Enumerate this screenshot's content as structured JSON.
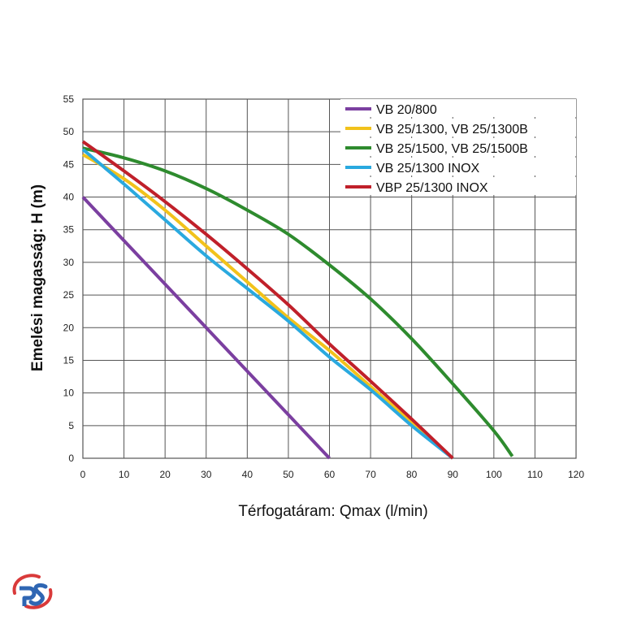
{
  "chart_data": {
    "type": "line",
    "xlabel": "Térfogatáram: Qmax (l/min)",
    "ylabel": "Emelési magasság: H (m)",
    "xlim": [
      0,
      120
    ],
    "ylim": [
      0,
      55
    ],
    "xticks": [
      "0",
      "10",
      "20",
      "30",
      "40",
      "50",
      "60",
      "70",
      "80",
      "90",
      "100",
      "110",
      "120"
    ],
    "yticks": [
      "0",
      "5",
      "10",
      "15",
      "20",
      "25",
      "30",
      "35",
      "40",
      "45",
      "50",
      "55"
    ],
    "grid": true,
    "legend": "top-right",
    "series": [
      {
        "name": "VB 20/800",
        "color": "#7b3fa0",
        "x": [
          0,
          60
        ],
        "y": [
          40,
          0
        ]
      },
      {
        "name": "VB 25/1300, VB 25/1300B",
        "color": "#f2c21b",
        "x": [
          0,
          10,
          20,
          30,
          40,
          50,
          60,
          70,
          80,
          90
        ],
        "y": [
          46.5,
          42.8,
          38,
          32.5,
          27,
          21.5,
          16.5,
          11,
          5.5,
          0
        ]
      },
      {
        "name": "VB 25/1500, VB 25/1500B",
        "color": "#2e8b2e",
        "x": [
          0,
          10,
          20,
          30,
          40,
          50,
          60,
          70,
          80,
          90,
          100,
          104.5
        ],
        "y": [
          47.5,
          46,
          44,
          41.3,
          38,
          34.3,
          29.6,
          24.4,
          18.3,
          11.4,
          4.2,
          0.3
        ]
      },
      {
        "name": "VB 25/1300 INOX",
        "color": "#2aa9df",
        "x": [
          0,
          10,
          20,
          30,
          40,
          50,
          60,
          70,
          80,
          90
        ],
        "y": [
          47.3,
          42,
          36.5,
          31,
          26,
          21,
          15.5,
          10.5,
          5,
          0
        ]
      },
      {
        "name": "VBP 25/1300 INOX",
        "color": "#c0202a",
        "x": [
          0,
          10,
          20,
          30,
          40,
          50,
          60,
          70,
          80,
          90
        ],
        "y": [
          48.5,
          44,
          39.3,
          34.3,
          29,
          23.5,
          17.5,
          11.8,
          6,
          0
        ]
      }
    ]
  }
}
